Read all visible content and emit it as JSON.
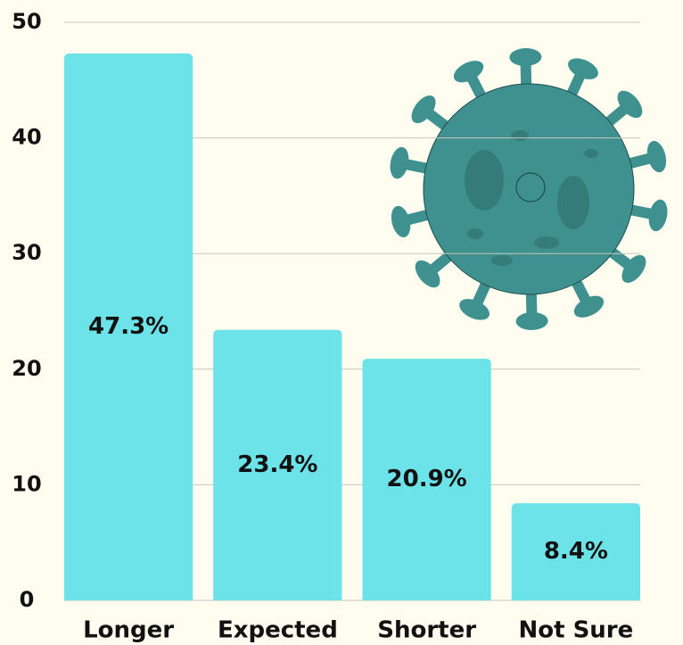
{
  "chart_data": {
    "type": "bar",
    "categories": [
      "Longer",
      "Expected",
      "Shorter",
      "Not Sure"
    ],
    "values": [
      47.3,
      23.4,
      20.9,
      8.4
    ],
    "value_labels": [
      "47.3%",
      "23.4%",
      "20.9%",
      "8.4%"
    ],
    "color": "#6be3e8",
    "ylim": [
      0,
      50
    ],
    "yticks": [
      0,
      10,
      20,
      30,
      40,
      50
    ],
    "grid": true
  }
}
